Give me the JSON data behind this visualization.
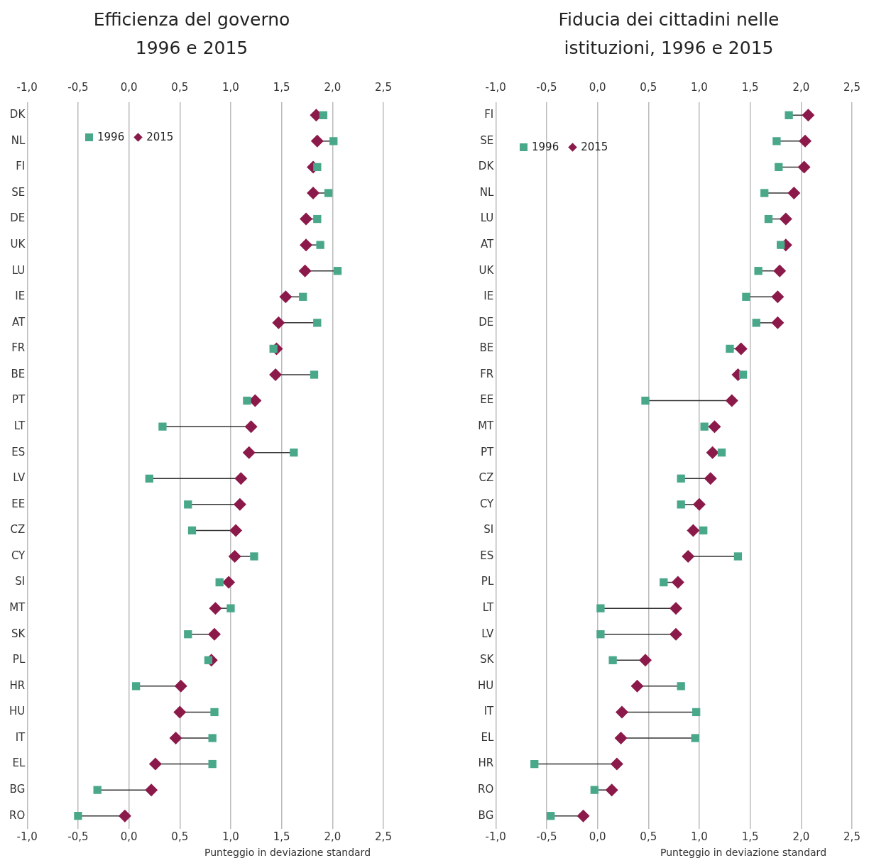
{
  "chart_data": [
    {
      "type": "scatter",
      "orientation": "horizontal",
      "title": "Efficienza del governo\n1996 e 2015",
      "xlabel": "Punteggio in deviazione standard",
      "grid": "x",
      "legend": "top left",
      "categories": [
        "DK",
        "NL",
        "FI",
        "SE",
        "DE",
        "UK",
        "LU",
        "IE",
        "AT",
        "FR",
        "BE",
        "PT",
        "LT",
        "ES",
        "LV",
        "EE",
        "CZ",
        "CY",
        "SI",
        "MT",
        "SK",
        "PL",
        "HR",
        "HU",
        "IT",
        "EL",
        "BG",
        "RO"
      ],
      "series": [
        {
          "name": "1996",
          "color": "#4aa88a",
          "marker": "square",
          "values": [
            1.91,
            2.01,
            1.85,
            1.96,
            1.85,
            1.88,
            2.05,
            1.71,
            1.85,
            1.42,
            1.82,
            1.16,
            0.33,
            1.62,
            0.2,
            0.58,
            0.62,
            1.23,
            0.89,
            1.0,
            0.58,
            0.78,
            0.07,
            0.84,
            0.82,
            0.82,
            -0.31,
            -0.5
          ]
        },
        {
          "name": "2015",
          "color": "#8b1a4a",
          "marker": "diamond",
          "values": [
            1.84,
            1.85,
            1.81,
            1.81,
            1.74,
            1.74,
            1.73,
            1.54,
            1.47,
            1.45,
            1.44,
            1.24,
            1.2,
            1.18,
            1.1,
            1.09,
            1.05,
            1.04,
            0.98,
            0.85,
            0.84,
            0.81,
            0.51,
            0.5,
            0.46,
            0.26,
            0.22,
            -0.04
          ]
        }
      ],
      "xlim": [
        -1,
        2.5
      ],
      "xticks": [
        {
          "value": -1,
          "label": "-1,0"
        },
        {
          "value": -0.5,
          "label": "-0,5"
        },
        {
          "value": 0,
          "label": "0,0"
        },
        {
          "value": 0.5,
          "label": "0,5"
        },
        {
          "value": 1,
          "label": "1,0"
        },
        {
          "value": 1.5,
          "label": "1,5"
        },
        {
          "value": 2,
          "label": "2,0"
        },
        {
          "value": 2.5,
          "label": "2,5"
        }
      ],
      "x2lim": [
        -1,
        2.5
      ],
      "x2ticks": [
        {
          "value": -1,
          "label": "-1,0"
        },
        {
          "value": -0.5,
          "label": "-0,5"
        },
        {
          "value": 0,
          "label": "0,0"
        },
        {
          "value": 0.5,
          "label": "0,5"
        },
        {
          "value": 1,
          "label": "1,0"
        },
        {
          "value": 1.5,
          "label": "1,5"
        },
        {
          "value": 2,
          "label": "2,0"
        },
        {
          "value": 2.5,
          "label": "2,5"
        }
      ]
    },
    {
      "type": "scatter",
      "orientation": "horizontal",
      "title": "Fiducia dei cittadini nelle\nistituzioni, 1996 e 2015",
      "xlabel": "Punteggio in deviazione standard",
      "grid": "x",
      "legend": "top left",
      "categories": [
        "FI",
        "SE",
        "DK",
        "NL",
        "LU",
        "AT",
        "UK",
        "IE",
        "DE",
        "BE",
        "FR",
        "EE",
        "MT",
        "PT",
        "CZ",
        "CY",
        "SI",
        "ES",
        "PL",
        "LT",
        "LV",
        "SK",
        "HU",
        "IT",
        "EL",
        "HR",
        "RO",
        "BG"
      ],
      "series": [
        {
          "name": "1996",
          "color": "#4aa88a",
          "marker": "square",
          "values": [
            1.88,
            1.76,
            1.78,
            1.64,
            1.68,
            1.8,
            1.58,
            1.46,
            1.56,
            1.3,
            1.43,
            0.47,
            1.05,
            1.22,
            0.82,
            0.82,
            1.04,
            1.38,
            0.65,
            0.03,
            0.03,
            0.15,
            0.82,
            0.97,
            0.96,
            -0.62,
            -0.03,
            -0.46
          ]
        },
        {
          "name": "2015",
          "color": "#8b1a4a",
          "marker": "diamond",
          "values": [
            2.07,
            2.04,
            2.03,
            1.93,
            1.85,
            1.85,
            1.79,
            1.77,
            1.77,
            1.41,
            1.38,
            1.32,
            1.15,
            1.13,
            1.11,
            1.0,
            0.94,
            0.89,
            0.79,
            0.77,
            0.77,
            0.47,
            0.39,
            0.24,
            0.23,
            0.19,
            0.14,
            -0.14
          ]
        }
      ],
      "xlim": [
        -1,
        2.5
      ],
      "xticks": [
        {
          "value": -1,
          "label": "-1,0"
        },
        {
          "value": -0.5,
          "label": "-0,5"
        },
        {
          "value": 0,
          "label": "0,0"
        },
        {
          "value": 0.5,
          "label": "0,5"
        },
        {
          "value": 1,
          "label": "1,0"
        },
        {
          "value": 1.5,
          "label": "1,5"
        },
        {
          "value": 2,
          "label": "2,0"
        },
        {
          "value": 2.5,
          "label": "2,5"
        }
      ],
      "x2lim": [
        -1,
        2.5
      ],
      "x2ticks": [
        {
          "value": -1,
          "label": "-1,0"
        },
        {
          "value": -0.5,
          "label": "-0,5"
        },
        {
          "value": 0,
          "label": "0,0"
        },
        {
          "value": 0.5,
          "label": "0,5"
        },
        {
          "value": 1,
          "label": "1,0"
        },
        {
          "value": 1.5,
          "label": "1,5"
        },
        {
          "value": 2,
          "label": "2,0"
        },
        {
          "value": 2.5,
          "label": "2,5"
        }
      ]
    }
  ]
}
